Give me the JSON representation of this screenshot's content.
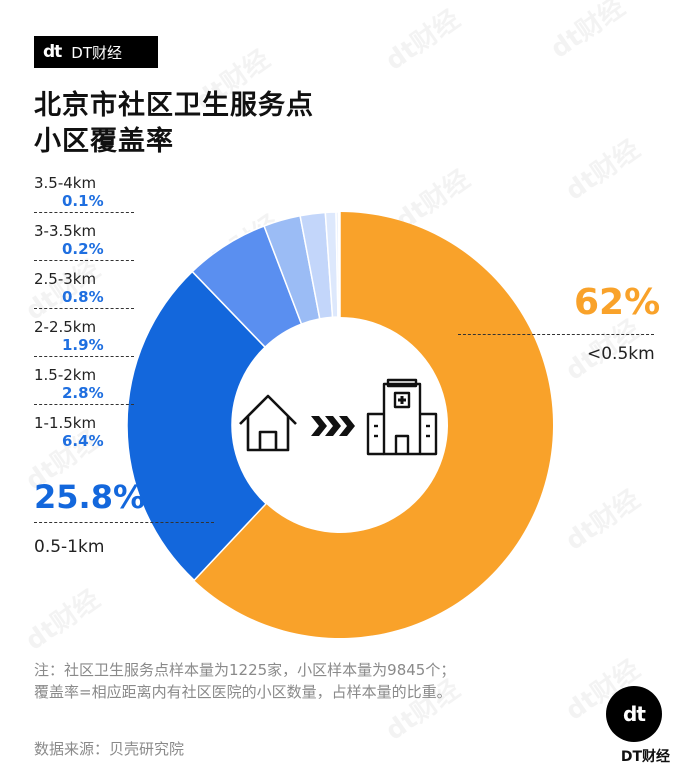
{
  "brand": {
    "logo": "dt",
    "name": "DT财经"
  },
  "watermark": "dt财经",
  "title_line1": "北京市社区卫生服务点",
  "title_line2": "小区覆盖率",
  "center_icons": [
    "house-icon",
    "arrows-icon",
    "hospital-icon"
  ],
  "colors": {
    "orange": "#f9a22a",
    "blue_dark": "#1367dc",
    "blue_mid": "#5a8ff0",
    "blue_light": "#9bbcf5",
    "blue_lighter": "#c3d6fa",
    "blue_lightest": "#dde8fc",
    "blue_pale": "#edf3fd",
    "label_blue": "#1f6fe0"
  },
  "chart_data": {
    "type": "pie",
    "title": "北京市社区卫生服务点\n小区覆盖率",
    "slices": [
      {
        "label": "<0.5km",
        "value": 62,
        "value_label": "62%"
      },
      {
        "label": "0.5-1km",
        "value": 25.8,
        "value_label": "25.8%"
      },
      {
        "label": "1-1.5km",
        "value": 6.4,
        "value_label": "6.4%"
      },
      {
        "label": "1.5-2km",
        "value": 2.8,
        "value_label": "2.8%"
      },
      {
        "label": "2-2.5km",
        "value": 1.9,
        "value_label": "1.9%"
      },
      {
        "label": "2.5-3km",
        "value": 0.8,
        "value_label": "0.8%"
      },
      {
        "label": "3-3.5km",
        "value": 0.2,
        "value_label": "0.2%"
      },
      {
        "label": "3.5-4km",
        "value": 0.1,
        "value_label": "0.1%"
      }
    ]
  },
  "note_line1": "注：社区卫生服务点样本量为1225家，小区样本量为9845个；",
  "note_line2": "覆盖率=相应距离内有社区医院的小区数量，占样本量的比重。",
  "source": "数据来源：贝壳研究院",
  "corner_logo": "dt",
  "corner_name": "DT财经"
}
